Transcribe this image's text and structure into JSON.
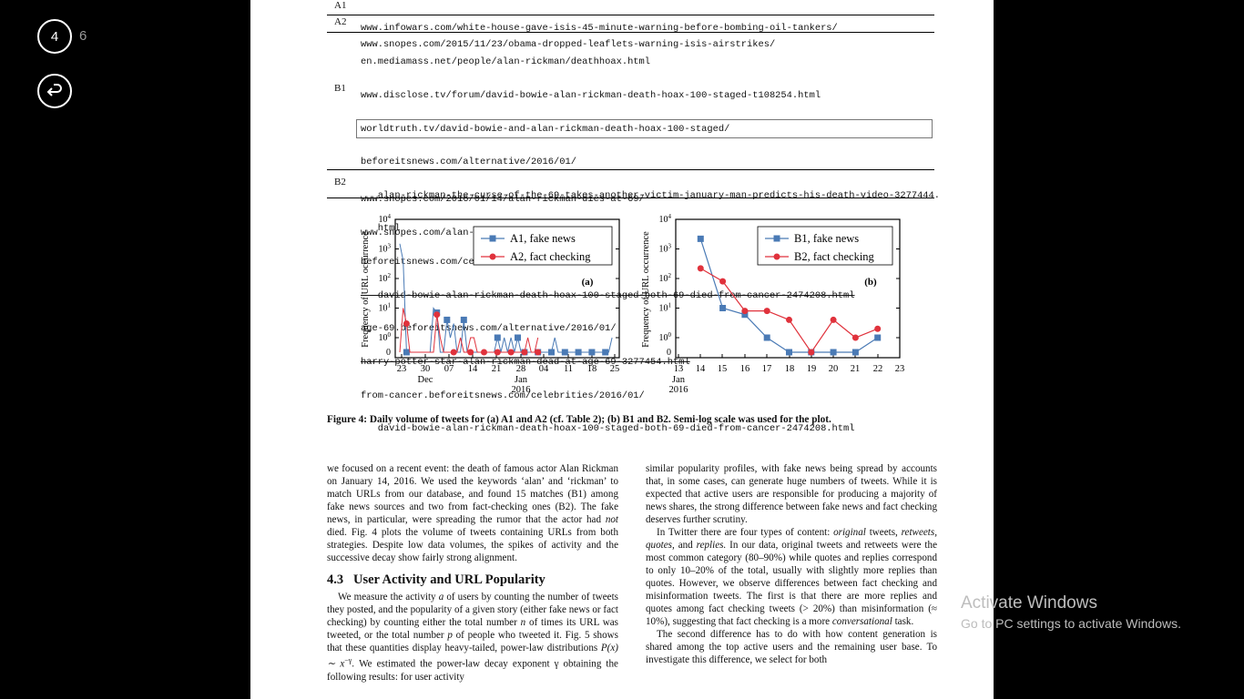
{
  "viewer": {
    "current_page": "4",
    "total_pages": "6",
    "back_icon": "return-arrow-icon"
  },
  "table": {
    "rows": [
      {
        "label": "A1",
        "urls": [
          "www.infowars.com/white-house-gave-isis-45-minute-warning-before-bombing-oil-tankers/"
        ]
      },
      {
        "label": "A2",
        "urls": [
          "www.snopes.com/2015/11/23/obama-dropped-leaflets-warning-isis-airstrikes/"
        ]
      },
      {
        "label": "B1",
        "urls": [
          "en.mediamass.net/people/alan-rickman/deathhoax.html",
          "www.disclose.tv/forum/david-bowie-alan-rickman-death-hoax-100-staged-t108254.html",
          "worldtruth.tv/david-bowie-and-alan-rickman-death-hoax-100-staged/",
          "beforeitsnews.com/alternative/2016/01/",
          "   alan-rickman-the-curse-of-the-69-takes-another-victim-january-man-predicts-his-death-video-3277444.",
          "   html",
          "beforeitsnews.com/celebrities/2016/01/",
          "   david-bowie-alan-rickman-death-hoax-100-staged-both-69-died-from-cancer-2474208.html",
          "age-69.beforeitsnews.com/alternative/2016/01/",
          "harry-potter-star-alan-rickman-dead-at-age-69-3277454.html",
          "from-cancer.beforeitsnews.com/celebrities/2016/01/",
          "   david-bowie-alan-rickman-death-hoax-100-staged-both-69-died-from-cancer-2474208.html"
        ]
      },
      {
        "label": "B2",
        "urls": [
          "www.snopes.com/2016/01/14/alan-rickman-dies-at-69/",
          "www.snopes.com/alan-rickman-potter-meme/"
        ]
      }
    ]
  },
  "chart_data": [
    {
      "type": "line",
      "panel_label": "(a)",
      "ylabel": "Frequency of URL occurrence",
      "yscale": "log (0 shown at bottom)",
      "y_ticks": [
        "10^4",
        "10^3",
        "10^2",
        "10^1",
        "10^0",
        "0"
      ],
      "x_ticks": [
        "23",
        "30",
        "07",
        "14",
        "21",
        "28",
        "04",
        "11",
        "18",
        "25"
      ],
      "x_month_labels": [
        {
          "label": "Dec",
          "at": "30"
        },
        {
          "label": "Jan",
          "sub": "2016",
          "at": "28"
        }
      ],
      "legend": {
        "position": "top-right",
        "entries": [
          "A1, fake news",
          "A2, fact checking"
        ]
      },
      "series": [
        {
          "name": "A1, fake news",
          "color": "#4a7ab5",
          "marker": "square",
          "points": [
            [
              0,
              1500
            ],
            [
              1,
              400
            ],
            [
              2,
              0
            ],
            [
              3,
              0
            ],
            [
              4,
              0
            ],
            [
              5,
              0
            ],
            [
              6,
              0
            ],
            [
              7,
              0
            ],
            [
              8,
              0
            ],
            [
              9,
              0
            ],
            [
              10,
              10
            ],
            [
              11,
              7
            ],
            [
              12,
              0
            ],
            [
              13,
              0
            ],
            [
              14,
              4
            ],
            [
              15,
              1
            ],
            [
              16,
              3
            ],
            [
              17,
              0
            ],
            [
              18,
              0
            ],
            [
              19,
              4
            ],
            [
              20,
              0
            ],
            [
              21,
              0
            ],
            [
              22,
              0
            ],
            [
              23,
              0
            ],
            [
              24,
              0
            ],
            [
              25,
              0
            ],
            [
              26,
              0
            ],
            [
              27,
              0
            ],
            [
              28,
              0
            ],
            [
              29,
              1
            ],
            [
              30,
              0
            ],
            [
              31,
              1
            ],
            [
              32,
              0
            ],
            [
              33,
              1
            ],
            [
              34,
              0
            ],
            [
              35,
              1
            ],
            [
              36,
              0
            ],
            [
              37,
              0
            ],
            [
              38,
              0
            ],
            [
              39,
              0
            ],
            [
              40,
              0
            ],
            [
              41,
              0
            ],
            [
              42,
              0
            ],
            [
              43,
              0
            ],
            [
              44,
              0
            ],
            [
              45,
              0
            ],
            [
              46,
              1
            ],
            [
              47,
              0
            ],
            [
              48,
              0
            ],
            [
              49,
              0
            ],
            [
              50,
              0
            ],
            [
              51,
              0
            ],
            [
              52,
              0
            ],
            [
              53,
              0
            ],
            [
              54,
              0
            ],
            [
              55,
              0
            ],
            [
              56,
              0
            ],
            [
              57,
              0
            ],
            [
              58,
              0
            ],
            [
              59,
              0
            ],
            [
              60,
              0
            ],
            [
              61,
              0
            ],
            [
              62,
              0
            ],
            [
              63,
              1
            ]
          ],
          "marker_points": [
            [
              2,
              0
            ],
            [
              11,
              7
            ],
            [
              14,
              4
            ],
            [
              19,
              4
            ],
            [
              29,
              1
            ],
            [
              35,
              1
            ],
            [
              37,
              0
            ],
            [
              41,
              0
            ],
            [
              45,
              0
            ],
            [
              49,
              0
            ],
            [
              53,
              0
            ],
            [
              57,
              0
            ],
            [
              61,
              0
            ]
          ]
        },
        {
          "name": "A2, fact checking",
          "color": "#e0323c",
          "marker": "circle",
          "points": [
            [
              0,
              0
            ],
            [
              1,
              10
            ],
            [
              2,
              3
            ],
            [
              3,
              0
            ],
            [
              4,
              0
            ],
            [
              5,
              0
            ],
            [
              6,
              0
            ],
            [
              7,
              0
            ],
            [
              8,
              0
            ],
            [
              9,
              0
            ],
            [
              10,
              0
            ],
            [
              11,
              6
            ],
            [
              12,
              1
            ],
            [
              13,
              0
            ],
            [
              14,
              0
            ],
            [
              15,
              0
            ],
            [
              16,
              0
            ],
            [
              17,
              0
            ],
            [
              18,
              1
            ],
            [
              19,
              0
            ],
            [
              20,
              0
            ],
            [
              21,
              1
            ],
            [
              22,
              1
            ],
            [
              23,
              0
            ],
            [
              24,
              0
            ],
            [
              25,
              0
            ],
            [
              26,
              0
            ],
            [
              27,
              0
            ],
            [
              28,
              0
            ],
            [
              29,
              0
            ],
            [
              30,
              0
            ],
            [
              31,
              0
            ],
            [
              32,
              0
            ],
            [
              33,
              0
            ],
            [
              34,
              0
            ],
            [
              35,
              0
            ],
            [
              36,
              0
            ],
            [
              37,
              0
            ],
            [
              38,
              1
            ],
            [
              39,
              0
            ],
            [
              40,
              0
            ],
            [
              41,
              1
            ]
          ],
          "marker_points": [
            [
              2,
              3
            ],
            [
              11,
              6
            ],
            [
              16,
              0
            ],
            [
              21,
              0
            ],
            [
              25,
              0
            ],
            [
              29,
              0
            ],
            [
              33,
              0
            ],
            [
              37,
              0
            ],
            [
              41,
              0
            ]
          ]
        }
      ]
    },
    {
      "type": "line",
      "panel_label": "(b)",
      "ylabel": "Frequency of URL occurrence",
      "yscale": "log (0 shown at bottom)",
      "y_ticks": [
        "10^4",
        "10^3",
        "10^2",
        "10^1",
        "10^0",
        "0"
      ],
      "x_ticks": [
        "13",
        "14",
        "15",
        "16",
        "17",
        "18",
        "19",
        "20",
        "21",
        "22",
        "23"
      ],
      "x_month_labels": [
        {
          "label": "Jan",
          "sub": "2016",
          "at": "13"
        }
      ],
      "legend": {
        "position": "top-right",
        "entries": [
          "B1, fake news",
          "B2, fact checking"
        ]
      },
      "series": [
        {
          "name": "B1, fake news",
          "color": "#4a7ab5",
          "marker": "square",
          "x": [
            14,
            15,
            16,
            17,
            18,
            19,
            20,
            21,
            22
          ],
          "values": [
            2200,
            10,
            6,
            1,
            0,
            0,
            0,
            0,
            1
          ]
        },
        {
          "name": "B2, fact checking",
          "color": "#e0323c",
          "marker": "circle",
          "x": [
            14,
            15,
            16,
            17,
            18,
            19,
            20,
            21,
            22
          ],
          "values": [
            220,
            80,
            8,
            8,
            4,
            0,
            4,
            1,
            2
          ]
        }
      ]
    }
  ],
  "caption": "Figure 4: Daily volume of tweets for (a) A1 and A2 (cf. Table 2); (b) B1 and B2. Semi-log scale was used for the plot.",
  "left_col": {
    "p1": "we focused on a recent event: the death of famous actor Alan Rickman on January 14, 2016. We used the keywords ‘alan’ and ‘rickman’ to match URLs from our database, and found 15 matches (B1) among fake news sources and two from fact-checking ones (B2). The fake news, in particular, were spreading the rumor that the actor had ",
    "p1_em": "not",
    "p1_end": " died. Fig. 4 plots the volume of tweets containing URLs from both strategies. Despite low data volumes, the spikes of activity and the successive decay show fairly strong alignment.",
    "section_num": "4.3",
    "section_title": "User Activity and URL Popularity",
    "p2a": "We measure the activity ",
    "p2_a": "a",
    "p2b": " of users by counting the number of tweets they posted, and the popularity of a given story (either fake news or fact checking) by counting either the total number ",
    "p2_n": "n",
    "p2c": " of times its URL was tweeted, or the total number ",
    "p2_p": "p",
    "p2d": " of people who tweeted it. Fig. 5 shows that these quantities display heavy-tailed, power-law distributions ",
    "p2_formula": "P(x) ∼ x",
    "p2_exp": "−γ",
    "p2e": ". We estimated the power-law decay exponent γ obtaining the following results: for user activity"
  },
  "right_col": {
    "p1": "similar popularity profiles, with fake news being spread by accounts that, in some cases, can generate huge numbers of tweets. While it is expected that active users are responsible for producing a majority of news shares, the strong difference between fake news and fact checking deserves further scrutiny.",
    "p2a": "In Twitter there are four types of content: ",
    "p2_em1": "original",
    "p2b": " tweets, ",
    "p2_em2": "retweets, quotes,",
    "p2c": " and ",
    "p2_em3": "replies.",
    "p2d": " In our data, original tweets and retweets were the most common category (80–90%) while quotes and replies correspond to only 10–20% of the total, usually with slightly more replies than quotes. However, we observe differences between fact checking and misinformation tweets. The first is that there are more replies and quotes among fact checking tweets (> 20%) than misinformation (≈ 10%), suggesting that fact checking is a more ",
    "p2_em4": "conversational",
    "p2e": " task.",
    "p3": "The second difference has to do with how content generation is shared among the top active users and the remaining user base. To investigate this difference, we select for both"
  },
  "watermark": {
    "title": "Activate Windows",
    "subtitle": "Go to PC settings to activate Windows."
  }
}
